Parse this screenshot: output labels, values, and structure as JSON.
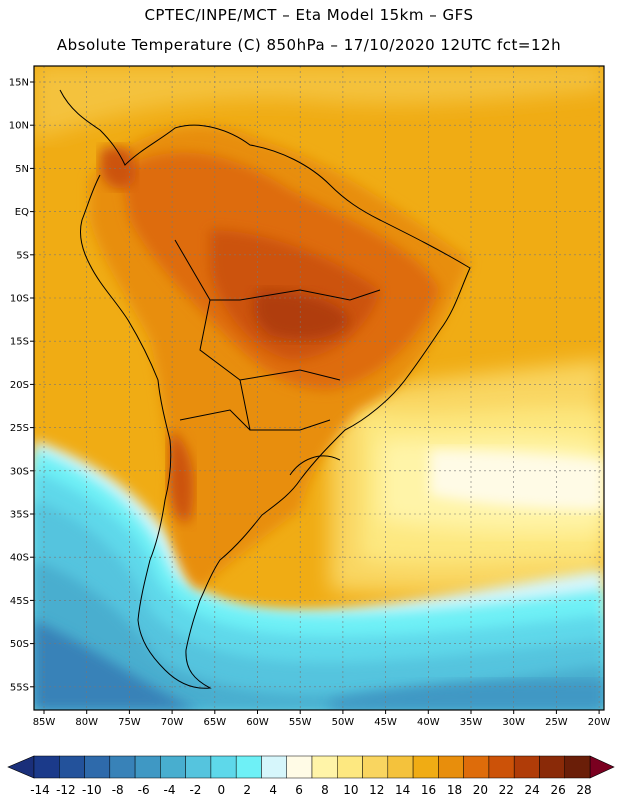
{
  "header": {
    "line1": "CPTEC/INPE/MCT –  Eta Model 15km – GFS",
    "line2": "Absolute Temperature (C) 850hPa – 17/10/2020 12UTC fct=12h"
  },
  "axes": {
    "lat_labels": [
      "15N",
      "10N",
      "5N",
      "EQ",
      "5S",
      "10S",
      "15S",
      "20S",
      "25S",
      "30S",
      "35S",
      "40S",
      "45S",
      "50S",
      "55S"
    ],
    "lon_labels": [
      "85W",
      "80W",
      "75W",
      "70W",
      "65W",
      "60W",
      "55W",
      "50W",
      "45W",
      "40W",
      "35W",
      "30W",
      "25W",
      "20W"
    ]
  },
  "colorbar": {
    "labels": [
      "-14",
      "-12",
      "-10",
      "-8",
      "-6",
      "-4",
      "-2",
      "0",
      "2",
      "4",
      "6",
      "8",
      "10",
      "12",
      "14",
      "16",
      "18",
      "20",
      "22",
      "24",
      "26",
      "28"
    ],
    "colors": [
      "#1b3a8a",
      "#23529b",
      "#2e6aab",
      "#3882b8",
      "#3f98c4",
      "#48aecf",
      "#55c4de",
      "#5ed8ea",
      "#6ef0f6",
      "#d6f6fb",
      "#fffbe6",
      "#fff4a8",
      "#fde880",
      "#f9d560",
      "#f4c23c",
      "#f0ac14",
      "#e88e0c",
      "#de6c0a",
      "#cc5208",
      "#b03c08",
      "#8a2a08",
      "#6a1e08"
    ],
    "below_color": "#1a2f7a",
    "above_color": "#7a0020"
  },
  "palette": {
    "ocean_warm": "#f0ac14",
    "land_hot": "#c45a0e",
    "frame": "#000000"
  }
}
